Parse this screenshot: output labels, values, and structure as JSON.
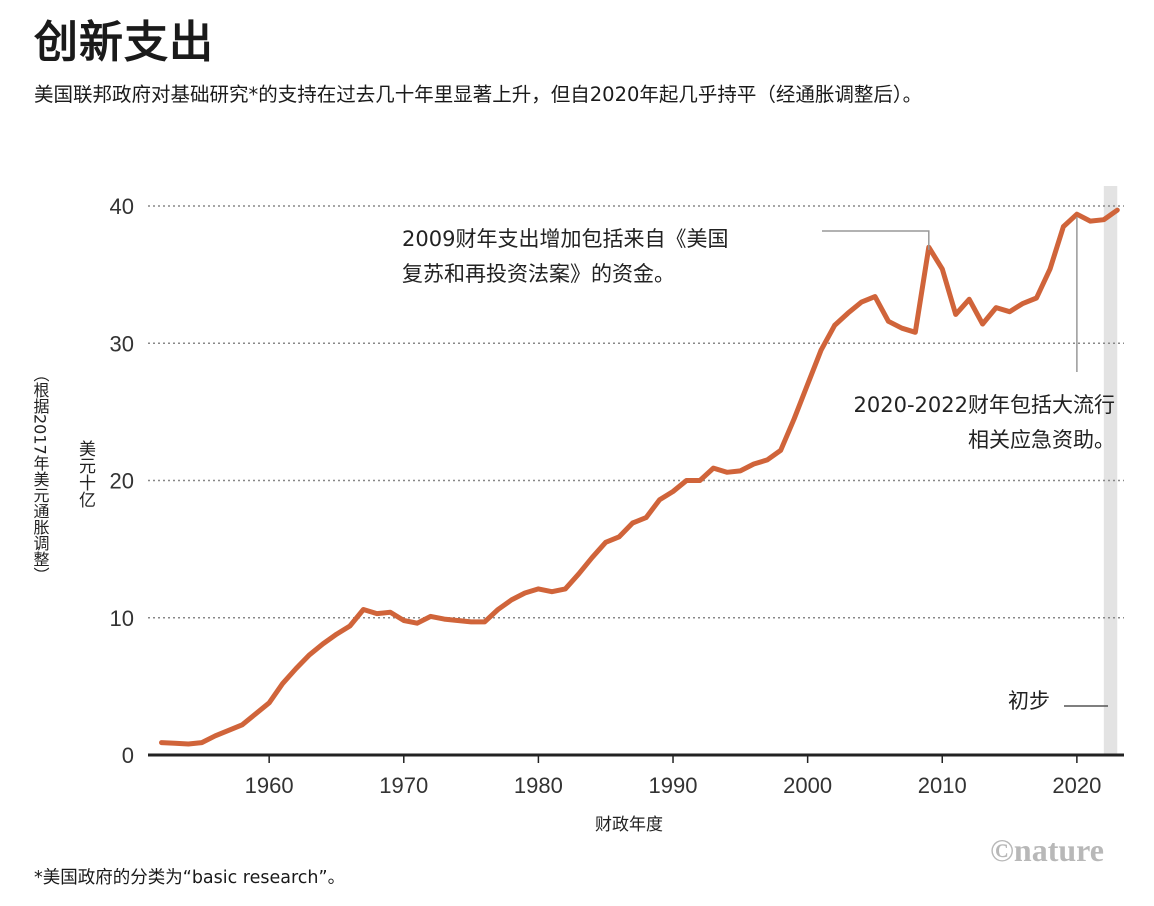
{
  "header": {
    "title": "创新支出",
    "subtitle": "美国联邦政府对基础研究*的支持在过去几十年里显著上升，但自2020年起几乎持平（经通胀调整后）。"
  },
  "footnote": "*美国政府的分类为“basic research”。",
  "logo": "©nature",
  "colors": {
    "line": "#d0643a",
    "grid": "#888888",
    "axis": "#222222",
    "shade": "#e3e3e3"
  },
  "chart_data": {
    "type": "line",
    "xlabel": "财政年度",
    "ylabel_main": "美元十亿",
    "ylabel_sub": "（根据2017年美元通胀调整）",
    "xlim": [
      1951,
      2023.5
    ],
    "ylim": [
      0,
      40
    ],
    "yticks": [
      0,
      10,
      20,
      30,
      40
    ],
    "xticks": [
      1960,
      1970,
      1980,
      1990,
      2000,
      2010,
      2020
    ],
    "grid": "horizontal-dotted",
    "preliminary_label": "初步",
    "preliminary_range": [
      2022,
      2023
    ],
    "annotations": [
      {
        "lines": [
          "2009财年支出增加包括来自《美国",
          "复苏和再投资法案》的资金。"
        ],
        "year": 2009
      },
      {
        "lines": [
          "2020-2022财年包括大流行",
          "相关应急资助。"
        ],
        "year": 2020
      }
    ],
    "series": [
      {
        "x": [
          1952,
          1953,
          1954,
          1955,
          1956,
          1957,
          1958,
          1959,
          1960,
          1961,
          1962,
          1963,
          1964,
          1965,
          1966,
          1967,
          1968,
          1969,
          1970,
          1971,
          1972,
          1973,
          1974,
          1975,
          1976,
          1977,
          1978,
          1979,
          1980,
          1981,
          1982,
          1983,
          1984,
          1985,
          1986,
          1987,
          1988,
          1989,
          1990,
          1991,
          1992,
          1993,
          1994,
          1995,
          1996,
          1997,
          1998,
          1999,
          2000,
          2001,
          2002,
          2003,
          2004,
          2005,
          2006,
          2007,
          2008,
          2009,
          2010,
          2011,
          2012,
          2013,
          2014,
          2015,
          2016,
          2017,
          2018,
          2019,
          2020,
          2021,
          2022,
          2023
        ],
        "values": [
          0.9,
          0.85,
          0.8,
          0.9,
          1.4,
          1.8,
          2.2,
          3.0,
          3.8,
          5.2,
          6.3,
          7.3,
          8.1,
          8.8,
          9.4,
          10.6,
          10.3,
          10.4,
          9.8,
          9.6,
          10.1,
          9.9,
          9.8,
          9.7,
          9.7,
          10.6,
          11.3,
          11.8,
          12.1,
          11.9,
          12.1,
          13.2,
          14.4,
          15.5,
          15.9,
          16.9,
          17.3,
          18.6,
          19.2,
          20.0,
          20.0,
          20.9,
          20.6,
          20.7,
          21.2,
          21.5,
          22.2,
          24.5,
          27.0,
          29.5,
          31.3,
          32.2,
          33.0,
          33.4,
          31.6,
          31.1,
          30.8,
          37.0,
          35.4,
          32.1,
          33.2,
          31.4,
          32.6,
          32.3,
          32.9,
          33.3,
          35.4,
          38.5,
          39.4,
          38.9,
          39.0,
          39.7
        ]
      }
    ]
  }
}
